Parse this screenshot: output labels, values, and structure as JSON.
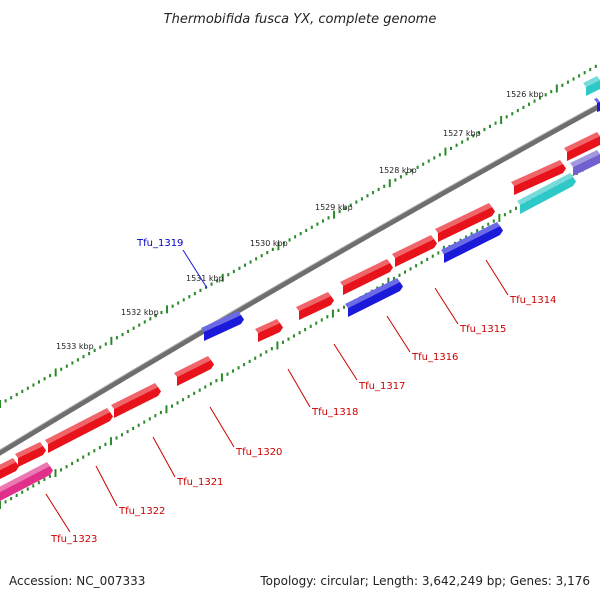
{
  "title": "Thermobifida fusca YX, complete genome",
  "footer": {
    "accession": "Accession: NC_007333",
    "topology": "Topology: circular; Length: 3,642,249 bp; Genes: 3,176"
  },
  "kbp_labels": [
    "1526 kbp",
    "1527 kbp",
    "1528 kbp",
    "1529 kbp",
    "1530 kbp",
    "1531 kbp",
    "1532 kbp",
    "1533 kbp"
  ],
  "gene_labels": [
    "Tfu_1314",
    "Tfu_1315",
    "Tfu_1316",
    "Tfu_1317",
    "Tfu_1318",
    "Tfu_1319",
    "Tfu_1320",
    "Tfu_1321",
    "Tfu_1322",
    "Tfu_1323"
  ],
  "colors": {
    "backbone": "#6e6e6e",
    "tick": "#2a8a2a",
    "red_gene": "#e8121a",
    "blue_gene": "#1a1ad8",
    "cyan_gene": "#2ec8c8",
    "purple_gene": "#7060d0",
    "magenta_gene": "#e0308a",
    "red_label": "#cc0000",
    "blue_label": "#0000cc"
  }
}
